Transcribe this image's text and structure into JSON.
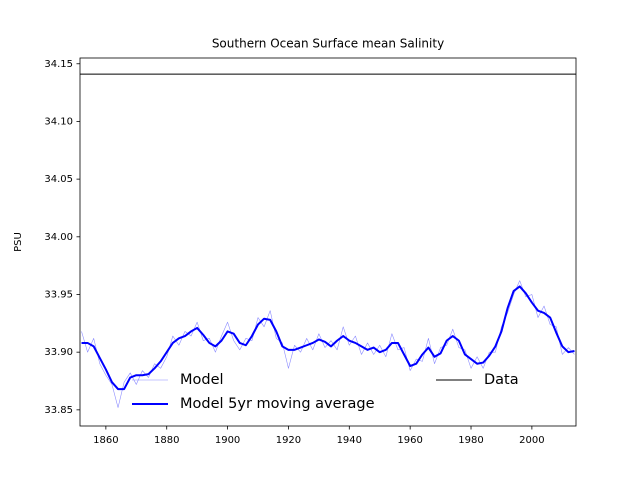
{
  "chart_data": {
    "type": "line",
    "title": "Southern Ocean Surface mean Salinity",
    "y_label": "PSU",
    "x": [
      1852,
      1854,
      1856,
      1858,
      1860,
      1862,
      1864,
      1866,
      1868,
      1870,
      1872,
      1874,
      1876,
      1878,
      1880,
      1882,
      1884,
      1886,
      1888,
      1890,
      1892,
      1894,
      1896,
      1898,
      1900,
      1902,
      1904,
      1906,
      1908,
      1910,
      1912,
      1914,
      1916,
      1918,
      1920,
      1922,
      1924,
      1926,
      1928,
      1930,
      1932,
      1934,
      1936,
      1938,
      1940,
      1942,
      1944,
      1946,
      1948,
      1950,
      1952,
      1954,
      1956,
      1958,
      1960,
      1962,
      1964,
      1966,
      1968,
      1970,
      1972,
      1974,
      1976,
      1978,
      1980,
      1982,
      1984,
      1986,
      1988,
      1990,
      1992,
      1994,
      1996,
      1998,
      2000,
      2002,
      2004,
      2006,
      2008,
      2010,
      2012,
      2014
    ],
    "series": [
      {
        "name": "Model",
        "color": "#8c8cff",
        "width": 0.6,
        "values": [
          33.918,
          33.9,
          33.912,
          33.89,
          33.88,
          33.872,
          33.852,
          33.874,
          33.882,
          33.872,
          33.884,
          33.878,
          33.89,
          33.886,
          33.896,
          33.914,
          33.906,
          33.918,
          33.914,
          33.926,
          33.91,
          33.912,
          33.9,
          33.914,
          33.926,
          33.91,
          33.902,
          33.912,
          33.91,
          33.93,
          33.922,
          33.936,
          33.912,
          33.908,
          33.886,
          33.906,
          33.9,
          33.912,
          33.902,
          33.916,
          33.904,
          33.91,
          33.902,
          33.922,
          33.906,
          33.914,
          33.898,
          33.908,
          33.898,
          33.906,
          33.896,
          33.916,
          33.902,
          33.904,
          33.884,
          33.894,
          33.892,
          33.912,
          33.89,
          33.904,
          33.906,
          33.92,
          33.904,
          33.902,
          33.886,
          33.896,
          33.886,
          33.9,
          33.9,
          33.922,
          33.934,
          33.95,
          33.962,
          33.948,
          33.95,
          33.93,
          33.94,
          33.924,
          33.922,
          33.898,
          33.904,
          33.898
        ]
      },
      {
        "name": "Model 5yr moving average",
        "color": "#0000ff",
        "width": 2,
        "values": [
          33.908,
          33.908,
          33.905,
          33.895,
          33.885,
          33.874,
          33.868,
          33.868,
          33.878,
          33.88,
          33.88,
          33.881,
          33.886,
          33.892,
          33.9,
          33.908,
          33.912,
          33.914,
          33.918,
          33.921,
          33.915,
          33.908,
          33.905,
          33.91,
          33.918,
          33.916,
          33.908,
          33.906,
          33.914,
          33.924,
          33.929,
          33.928,
          33.918,
          33.905,
          33.902,
          33.902,
          33.904,
          33.906,
          33.908,
          33.911,
          33.909,
          33.905,
          33.91,
          33.914,
          33.91,
          33.908,
          33.905,
          33.902,
          33.904,
          33.9,
          33.902,
          33.908,
          33.908,
          33.898,
          33.888,
          33.89,
          33.898,
          33.904,
          33.896,
          33.899,
          33.91,
          33.914,
          33.91,
          33.898,
          33.894,
          33.89,
          33.891,
          33.897,
          33.905,
          33.918,
          33.938,
          33.953,
          33.957,
          33.951,
          33.943,
          33.936,
          33.934,
          33.93,
          33.917,
          33.905,
          33.9,
          33.901
        ]
      }
    ],
    "reference_line": {
      "name": "Data",
      "value": 34.141,
      "color": "#000000"
    },
    "xlim": [
      1851.5,
      2014.5
    ],
    "ylim": [
      33.836,
      34.155
    ],
    "xticks": [
      1860,
      1880,
      1900,
      1920,
      1940,
      1960,
      1980,
      2000
    ],
    "yticks": [
      33.85,
      {
        "value": 33.9,
        "label": "33.90"
      },
      33.95,
      {
        "value": 34.0,
        "label": "34.00"
      },
      34.05,
      {
        "value": 34.1,
        "label": "34.10"
      },
      34.15
    ],
    "legend": "lower center"
  }
}
